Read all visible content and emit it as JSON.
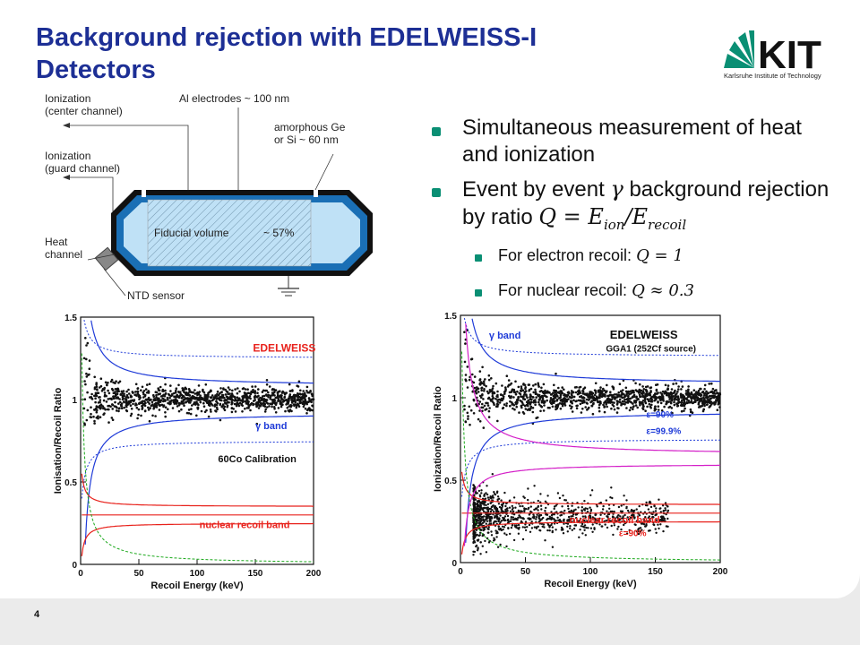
{
  "slide": {
    "title": "Background rejection with EDELWEISS-I Detectors",
    "page_number": "4",
    "accent": "#1d2f95",
    "bullet_color": "#0a8f74"
  },
  "logo": {
    "wordmark": "KIT",
    "subtitle": "Karlsruhe Institute of Technology"
  },
  "bullets": {
    "b1": "Simultaneous measurement of heat and ionization",
    "b2_pre": "Event by event ",
    "b2_gamma": "γ",
    "b2_mid": " background rejection by ratio ",
    "b2_formula": "Q = E",
    "b2_sub1": "ion",
    "b2_slash": "/E",
    "b2_sub2": "recoil",
    "sub1_text": "For electron recoil: ",
    "sub1_formula": "Q  = 1",
    "sub2_text": "For nuclear recoil: ",
    "sub2_formula": "Q  ≈ 0.3"
  },
  "diagram": {
    "ion_center": [
      "Ionization",
      "(center channel)"
    ],
    "electrodes": "Al electrodes ~ 100 nm",
    "amorphous": [
      "amorphous Ge",
      "or Si ~ 60 nm"
    ],
    "ion_guard": [
      "Ionization",
      "(guard channel)"
    ],
    "heat": [
      "Heat",
      "channel"
    ],
    "fiducial": "Fiducial volume",
    "percent": "~ 57%",
    "ntd": "NTD sensor"
  },
  "chart_data": [
    {
      "type": "scatter",
      "title": "EDELWEISS",
      "xlabel": "Recoil Energy (keV)",
      "ylabel": "Ionisation/Recoil Ratio",
      "xlim": [
        0,
        200
      ],
      "ylim": [
        0,
        1.5
      ],
      "xticks": [
        0,
        50,
        100,
        150,
        200
      ],
      "yticks": [
        0,
        0.5,
        1,
        1.5
      ],
      "annotations": [
        "γ band",
        "60Co Calibration",
        "nuclear recoil band"
      ],
      "colors": {
        "gamma": "#1f3bd8",
        "nuclear": "#e8221c",
        "title": "#e8221c",
        "threshold": "#1aa81a"
      },
      "series": [
        {
          "name": "γ band",
          "values_desc": "electron recoil events centered at Q=1",
          "center": 1.0
        },
        {
          "name": "nuclear recoil band",
          "center": 0.3
        }
      ]
    },
    {
      "type": "scatter",
      "title": "EDELWEISS",
      "subtitle": "GGA1 (252Cf source)",
      "xlabel": "Recoil Energy (keV)",
      "ylabel": "Ionization/Recoil Ratio",
      "xlim": [
        0,
        200
      ],
      "ylim": [
        0,
        1.5
      ],
      "xticks": [
        0,
        50,
        100,
        150,
        200
      ],
      "yticks": [
        0,
        0.5,
        1,
        1.5
      ],
      "annotations": [
        "γ band",
        "ε=90%",
        "ε=99.9%",
        "nuclear recoil band",
        "ε=90%"
      ],
      "colors": {
        "gamma": "#1f3bd8",
        "nuclear": "#e8221c",
        "magenta": "#d41fc8",
        "threshold": "#1aa81a"
      }
    }
  ]
}
